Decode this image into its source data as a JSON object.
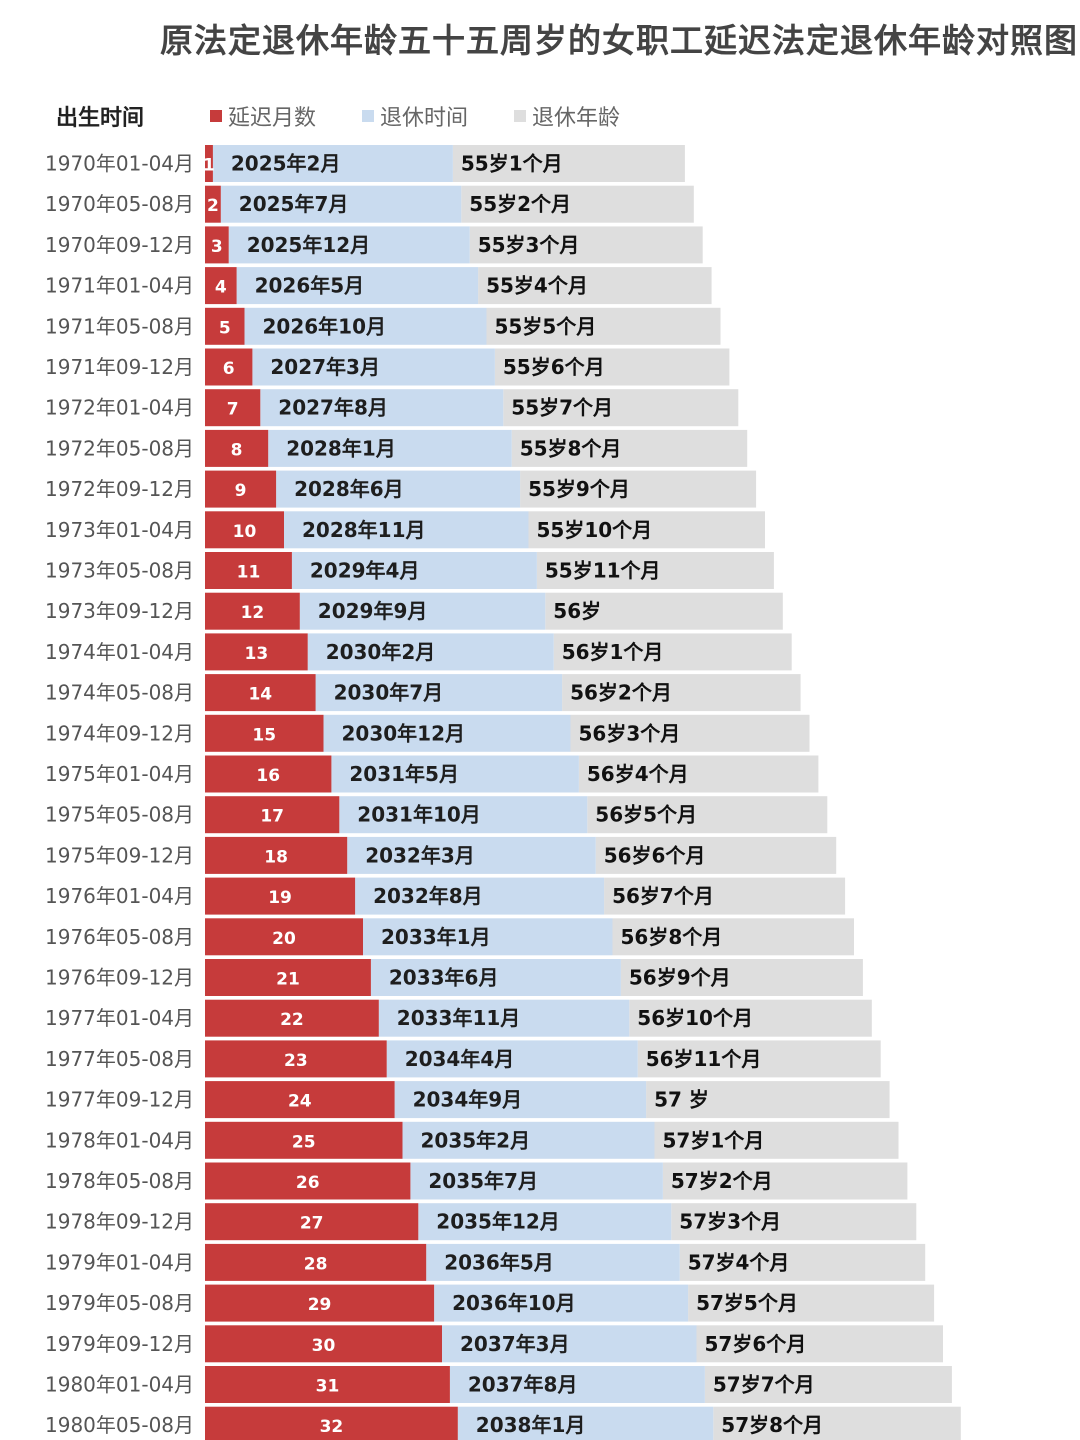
{
  "title": "原法定退休年龄五十五周岁的女职工延迟法定退休年龄对照图",
  "colors": {
    "delay": "#c63b3b",
    "time": "#c9dbef",
    "age": "#dedede"
  },
  "chart_data": {
    "type": "bar",
    "stacked": true,
    "orientation": "horizontal",
    "category_header": "出生时间",
    "legend_placement": "top",
    "series": [
      {
        "name": "延迟月数",
        "values": [
          1,
          2,
          3,
          4,
          5,
          6,
          7,
          8,
          9,
          10,
          11,
          12,
          13,
          14,
          15,
          16,
          17,
          18,
          19,
          20,
          21,
          22,
          23,
          24,
          25,
          26,
          27,
          28,
          29,
          30,
          31,
          32
        ]
      },
      {
        "name": "退休时间",
        "labels": [
          "2025年2月",
          "2025年7月",
          "2025年12月",
          "2026年5月",
          "2026年10月",
          "2027年3月",
          "2027年8月",
          "2028年1月",
          "2028年6月",
          "2028年11月",
          "2029年4月",
          "2029年9月",
          "2030年2月",
          "2030年7月",
          "2030年12月",
          "2031年5月",
          "2031年10月",
          "2032年3月",
          "2032年8月",
          "2033年1月",
          "2033年6月",
          "2033年11月",
          "2034年4月",
          "2034年9月",
          "2035年2月",
          "2035年7月",
          "2035年12月",
          "2036年5月",
          "2036年10月",
          "2037年3月",
          "2037年8月",
          "2038年1月"
        ]
      },
      {
        "name": "退休年龄",
        "labels": [
          "55岁1个月",
          "55岁2个月",
          "55岁3个月",
          "55岁4个月",
          "55岁5个月",
          "55岁6个月",
          "55岁7个月",
          "55岁8个月",
          "55岁9个月",
          "55岁10个月",
          "55岁11个月",
          "56岁",
          "56岁1个月",
          "56岁2个月",
          "56岁3个月",
          "56岁4个月",
          "56岁5个月",
          "56岁6个月",
          "56岁7个月",
          "56岁8个月",
          "56岁9个月",
          "56岁10个月",
          "56岁11个月",
          "57 岁",
          "57岁1个月",
          "57岁2个月",
          "57岁3个月",
          "57岁4个月",
          "57岁5个月",
          "57岁6个月",
          "57岁7个月",
          "57岁8个月"
        ]
      }
    ],
    "categories": [
      "1970年01-04月",
      "1970年05-08月",
      "1970年09-12月",
      "1971年01-04月",
      "1971年05-08月",
      "1971年09-12月",
      "1972年01-04月",
      "1972年05-08月",
      "1972年09-12月",
      "1973年01-04月",
      "1973年05-08月",
      "1973年09-12月",
      "1974年01-04月",
      "1974年05-08月",
      "1974年09-12月",
      "1975年01-04月",
      "1975年05-08月",
      "1975年09-12月",
      "1976年01-04月",
      "1976年05-08月",
      "1976年09-12月",
      "1977年01-04月",
      "1977年05-08月",
      "1977年09-12月",
      "1978年01-04月",
      "1978年05-08月",
      "1978年09-12月",
      "1979年01-04月",
      "1979年05-08月",
      "1979年09-12月",
      "1980年01-04月",
      "1980年05-08月"
    ]
  }
}
